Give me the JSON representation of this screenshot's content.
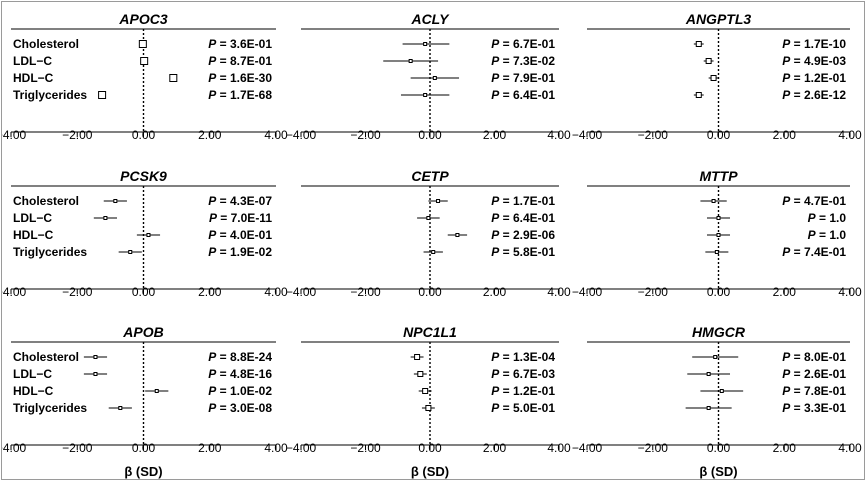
{
  "chart_data": [
    {
      "type": "forest",
      "title": "APOC3",
      "categories": [
        "Cholesterol",
        "LDL−C",
        "HDL−C",
        "Triglycerides"
      ],
      "values": [
        -0.02,
        0.02,
        0.9,
        -1.25
      ],
      "ci_low": [
        -0.12,
        -0.08,
        0.8,
        -1.35
      ],
      "ci_high": [
        0.08,
        0.12,
        1.0,
        -1.15
      ],
      "p_values": [
        "3.6E-01",
        "8.7E-01",
        "1.6E-30",
        "1.7E-68"
      ],
      "xlim": [
        -4,
        4
      ],
      "xticks": [
        "−4.00",
        "−2.00",
        "0.00",
        "2.00",
        "4.00"
      ],
      "xlabel": ""
    },
    {
      "type": "forest",
      "title": "ACLY",
      "categories": [
        "Cholesterol",
        "LDL−C",
        "HDL−C",
        "Triglycerides"
      ],
      "values": [
        -0.15,
        -0.6,
        0.15,
        -0.15
      ],
      "ci_low": [
        -0.85,
        -1.45,
        -0.6,
        -0.9
      ],
      "ci_high": [
        0.6,
        0.25,
        0.9,
        0.6
      ],
      "p_values": [
        "6.7E-01",
        "7.3E-02",
        "7.9E-01",
        "6.4E-01"
      ],
      "xlim": [
        -4,
        4
      ],
      "xticks": [
        "−4.00",
        "−2.00",
        "0.00",
        "2.00",
        "4.00"
      ],
      "xlabel": ""
    },
    {
      "type": "forest",
      "title": "ANGPTL3",
      "categories": [
        "Cholesterol",
        "LDL−C",
        "HDL−C",
        "Triglycerides"
      ],
      "values": [
        -0.6,
        -0.3,
        -0.15,
        -0.6
      ],
      "ci_low": [
        -0.75,
        -0.45,
        -0.3,
        -0.75
      ],
      "ci_high": [
        -0.45,
        -0.15,
        0.0,
        -0.45
      ],
      "p_values": [
        "1.7E-10",
        "4.9E-03",
        "1.2E-01",
        "2.6E-12"
      ],
      "xlim": [
        -4,
        4
      ],
      "xticks": [
        "−4.00",
        "−2.00",
        "0.00",
        "2.00",
        "4.00"
      ],
      "xlabel": ""
    },
    {
      "type": "forest",
      "title": "PCSK9",
      "categories": [
        "Cholesterol",
        "LDL−C",
        "HDL−C",
        "Triglycerides"
      ],
      "values": [
        -0.85,
        -1.15,
        0.15,
        -0.4
      ],
      "ci_low": [
        -1.2,
        -1.5,
        -0.2,
        -0.75
      ],
      "ci_high": [
        -0.5,
        -0.8,
        0.5,
        -0.05
      ],
      "p_values": [
        "4.3E-07",
        "7.0E-11",
        "4.0E-01",
        "1.9E-02"
      ],
      "xlim": [
        -4,
        4
      ],
      "xticks": [
        "−4.00",
        "−2.00",
        "0.00",
        "2.00",
        "4.00"
      ],
      "xlabel": ""
    },
    {
      "type": "forest",
      "title": "CETP",
      "categories": [
        "Cholesterol",
        "LDL−C",
        "HDL−C",
        "Triglycerides"
      ],
      "values": [
        0.25,
        -0.05,
        0.85,
        0.1
      ],
      "ci_low": [
        -0.05,
        -0.4,
        0.55,
        -0.2
      ],
      "ci_high": [
        0.55,
        0.3,
        1.15,
        0.4
      ],
      "p_values": [
        "1.7E-01",
        "6.4E-01",
        "2.9E-06",
        "5.8E-01"
      ],
      "xlim": [
        -4,
        4
      ],
      "xticks": [
        "−4.00",
        "−2.00",
        "0.00",
        "2.00",
        "4.00"
      ],
      "xlabel": ""
    },
    {
      "type": "forest",
      "title": "MTTP",
      "categories": [
        "Cholesterol",
        "LDL−C",
        "HDL−C",
        "Triglycerides"
      ],
      "values": [
        -0.15,
        0.0,
        0.0,
        -0.05
      ],
      "ci_low": [
        -0.55,
        -0.35,
        -0.35,
        -0.4
      ],
      "ci_high": [
        0.25,
        0.35,
        0.35,
        0.3
      ],
      "p_values": [
        "4.7E-01",
        "1.0",
        "1.0",
        "7.4E-01"
      ],
      "xlim": [
        -4,
        4
      ],
      "xticks": [
        "−4.00",
        "−2.00",
        "0.00",
        "2.00",
        "4.00"
      ],
      "xlabel": ""
    },
    {
      "type": "forest",
      "title": "APOB",
      "categories": [
        "Cholesterol",
        "LDL−C",
        "HDL−C",
        "Triglycerides"
      ],
      "values": [
        -1.45,
        -1.45,
        0.4,
        -0.7
      ],
      "ci_low": [
        -1.8,
        -1.8,
        0.05,
        -1.05
      ],
      "ci_high": [
        -1.1,
        -1.1,
        0.75,
        -0.35
      ],
      "p_values": [
        "8.8E-24",
        "4.8E-16",
        "1.0E-02",
        "3.0E-08"
      ],
      "xlim": [
        -4,
        4
      ],
      "xticks": [
        "−4.00",
        "−2.00",
        "0.00",
        "2.00",
        "4.00"
      ],
      "xlabel": "β (SD)"
    },
    {
      "type": "forest",
      "title": "NPC1L1",
      "categories": [
        "Cholesterol",
        "LDL−C",
        "HDL−C",
        "Triglycerides"
      ],
      "values": [
        -0.4,
        -0.3,
        -0.15,
        -0.05
      ],
      "ci_low": [
        -0.6,
        -0.5,
        -0.35,
        -0.25
      ],
      "ci_high": [
        -0.2,
        -0.1,
        0.05,
        0.15
      ],
      "p_values": [
        "1.3E-04",
        "6.7E-03",
        "1.2E-01",
        "5.0E-01"
      ],
      "xlim": [
        -4,
        4
      ],
      "xticks": [
        "−4.00",
        "−2.00",
        "0.00",
        "2.00",
        "4.00"
      ],
      "xlabel": "β (SD)"
    },
    {
      "type": "forest",
      "title": "HMGCR",
      "categories": [
        "Cholesterol",
        "LDL−C",
        "HDL−C",
        "Triglycerides"
      ],
      "values": [
        -0.1,
        -0.3,
        0.1,
        -0.3
      ],
      "ci_low": [
        -0.8,
        -0.95,
        -0.55,
        -1.0
      ],
      "ci_high": [
        0.6,
        0.35,
        0.75,
        0.4
      ],
      "p_values": [
        "8.0E-01",
        "2.6E-01",
        "7.8E-01",
        "3.3E-01"
      ],
      "xlim": [
        -4,
        4
      ],
      "xticks": [
        "−4.00",
        "−2.00",
        "0.00",
        "2.00",
        "4.00"
      ],
      "xlabel": "β (SD)"
    }
  ],
  "p_label": "P",
  "p_sep": " = "
}
